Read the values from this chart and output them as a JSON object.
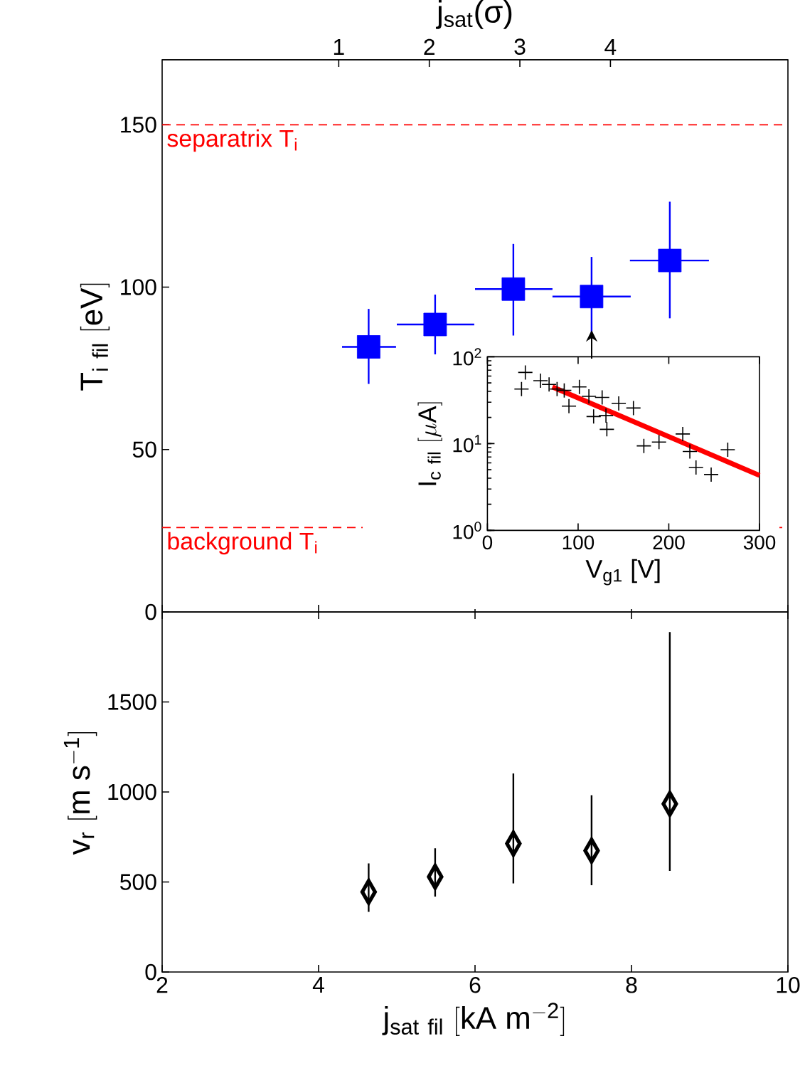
{
  "chart_data": [
    {
      "type": "scatter",
      "ylabel": "\\mathrm{T_{i\\ fil}\\ [eV]}",
      "x2label": "j$_{sat}$(σ)",
      "x": [
        4.64,
        5.49,
        6.49,
        7.49,
        8.49
      ],
      "values": [
        81.6,
        88.5,
        99.4,
        97.1,
        108.2
      ],
      "errors": [
        [
          70.2,
          93.3
        ],
        [
          79.3,
          97.7
        ],
        [
          85.1,
          113.3
        ],
        [
          84.8,
          109.3
        ],
        [
          90.4,
          126.3
        ]
      ],
      "xerrors": [
        [
          4.3,
          4.99
        ],
        [
          5.0,
          5.99
        ],
        [
          6.0,
          6.99
        ],
        [
          6.99,
          7.99
        ],
        [
          7.98,
          8.99
        ]
      ],
      "color": "#0000ff",
      "marker": "square",
      "xlim": [
        2,
        10
      ],
      "xticks": [
        2,
        4,
        6,
        8,
        10
      ],
      "ylim": [
        0,
        170
      ],
      "yticks": [
        0,
        50,
        100,
        150
      ],
      "x2lim": [
        -0.95,
        5.96
      ],
      "x2ticks": [
        1,
        2,
        3,
        4
      ],
      "tick_labels": "y",
      "ref_lines": [
        {
          "axis": "y",
          "value": 150,
          "label": "separatrix T$_{i}$",
          "color": "#ff0000",
          "line_style": "dashed"
        },
        {
          "axis": "y",
          "value": 26,
          "label": "background T$_{i}$",
          "color": "#ff0000",
          "line_style": "dashed"
        }
      ]
    },
    {
      "type": "scatter",
      "xlabel": "V$_{g1}$ [V]",
      "ylabel": "\\mathrm{I_{c\\ fil}\\ [\\mu A]}",
      "log": "y",
      "xlim": [
        0,
        300
      ],
      "xticks": [
        0,
        100,
        200,
        300
      ],
      "ylim": [
        1,
        100
      ],
      "yticks": [
        {
          "value": 1,
          "label": "10$^{0}$"
        },
        {
          "value": 10,
          "label": "10$^{1}$"
        },
        {
          "value": 100,
          "label": "10$^{2}$"
        }
      ],
      "series": [
        {
          "color": "#000000",
          "marker": "cross",
          "x": [
            37.6,
            41.8,
            58.5,
            68,
            76.8,
            84.7,
            89.9,
            101.4,
            111.9,
            117.1,
            126.5,
            130.7,
            131.7,
            144.8,
            161,
            172.5,
            189.2,
            215.4,
            223.2,
            230,
            246.7,
            265
          ],
          "values": [
            42.5,
            66,
            53,
            48,
            42.5,
            41,
            27,
            45,
            35,
            20.5,
            34,
            21,
            14.6,
            29,
            25.7,
            9.4,
            10.4,
            12.9,
            8.1,
            5.3,
            4.4,
            8.5
          ]
        },
        {
          "type": "line",
          "color": "#ff0000",
          "x": [
            71.6,
            300
          ],
          "values": [
            45,
            4.3
          ]
        }
      ]
    },
    {
      "type": "scatter",
      "xlabel": "\\mathrm{j_{sat\\ fil}\\ [kA\\ m^{-2}]}",
      "ylabel": "\\mathrm{v_{r}\\ [m\\ s^{-1}]}",
      "x": [
        4.64,
        5.49,
        6.49,
        7.49,
        8.49
      ],
      "values": [
        445,
        529,
        713,
        674,
        934
      ],
      "errors": [
        [
          334,
          603
        ],
        [
          419,
          687
        ],
        [
          492,
          1103
        ],
        [
          482,
          982
        ],
        [
          561,
          1888
        ]
      ],
      "color": "#000000",
      "marker": "diamond",
      "xlim": [
        2,
        10
      ],
      "xticks": [
        2,
        4,
        6,
        8,
        10
      ],
      "ylim": [
        0,
        2000
      ],
      "yticks": [
        0,
        500,
        1000,
        1500
      ]
    }
  ]
}
